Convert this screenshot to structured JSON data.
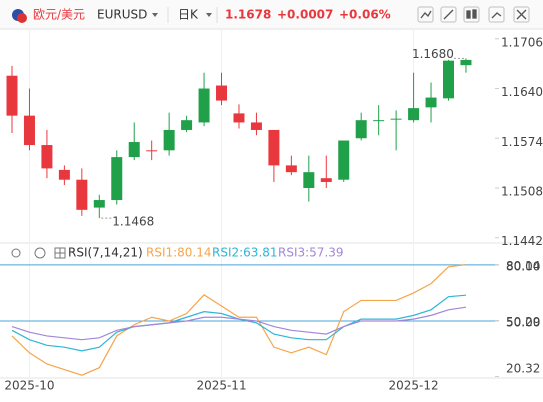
{
  "header": {
    "pair": "欧元/美元",
    "symbol": "EURUSD",
    "period": "日K",
    "price": "1.1678",
    "change": "+0.0007",
    "change_pct": "+0.06%"
  },
  "chart_data": [
    {
      "type": "candlestick",
      "categories": [
        null,
        "2025-10",
        null,
        null,
        null,
        null,
        null,
        null,
        null,
        null,
        null,
        null,
        "2025-11",
        null,
        null,
        null,
        null,
        null,
        null,
        null,
        null,
        null,
        null,
        "2025-12",
        null,
        null,
        null
      ],
      "open": [
        1.1657,
        1.1604,
        1.1565,
        1.1532,
        1.1519,
        1.1482,
        1.1492,
        1.1549,
        1.1558,
        1.1558,
        1.1585,
        1.1595,
        1.1644,
        1.1607,
        1.1595,
        1.1585,
        1.1538,
        1.1508,
        1.1521,
        1.1519,
        1.1574,
        1.1598,
        1.16,
        1.1598,
        1.1615,
        1.1627,
        1.1671
      ],
      "high": [
        1.167,
        1.164,
        1.1585,
        1.1538,
        1.1534,
        1.1499,
        1.1558,
        1.1595,
        1.1571,
        1.1608,
        1.1604,
        1.1661,
        1.1661,
        1.1619,
        1.1608,
        1.1585,
        1.1551,
        1.1551,
        1.1551,
        1.1571,
        1.1608,
        1.1618,
        1.1611,
        1.1661,
        1.1648,
        1.1678,
        1.168
      ],
      "low": [
        1.1581,
        1.1558,
        1.1521,
        1.1512,
        1.1471,
        1.1468,
        1.1486,
        1.1545,
        1.1545,
        1.1551,
        1.1582,
        1.159,
        1.1618,
        1.1587,
        1.1578,
        1.1516,
        1.1525,
        1.149,
        1.1508,
        1.1516,
        1.1571,
        1.1578,
        1.1558,
        1.1595,
        1.1595,
        1.1624,
        1.1661
      ],
      "close": [
        1.1604,
        1.1565,
        1.1534,
        1.1519,
        1.1479,
        1.1492,
        1.1549,
        1.1569,
        1.1557,
        1.1585,
        1.1598,
        1.164,
        1.1624,
        1.1595,
        1.1585,
        1.1538,
        1.1529,
        1.1529,
        1.1516,
        1.1571,
        1.1598,
        1.1598,
        1.16,
        1.1614,
        1.1628,
        1.1677,
        1.1678
      ],
      "up_color": "#21a04a",
      "down_color": "#e8383d",
      "ylim": [
        1.1435,
        1.1719
      ],
      "yticks": [
        1.1706,
        {
          "value": 1.164,
          "label": "1.1640"
        },
        1.1574,
        1.1508,
        1.1442
      ],
      "annotations": [
        {
          "value": 1.168,
          "label": "1.1680"
        },
        {
          "value": 1.1468,
          "label": "1.1468"
        }
      ]
    },
    {
      "type": "line",
      "title": "RSI(7,14,21)",
      "series": [
        {
          "name": "RSI1:80.14",
          "color": "#f5a54a",
          "values": [
            42,
            33,
            27,
            24,
            21,
            25,
            42,
            48,
            52,
            50,
            54,
            64,
            58,
            52,
            52,
            36,
            33,
            36,
            32,
            55,
            61,
            61,
            61,
            65,
            70,
            79,
            80.14
          ]
        },
        {
          "name": "RSI2:63.81",
          "color": "#2fb5d6",
          "values": [
            45,
            40,
            37,
            36,
            34,
            36,
            44,
            47,
            48,
            49,
            52,
            55,
            54,
            51,
            49,
            43,
            41,
            40,
            40,
            47,
            51,
            51,
            51,
            53,
            56,
            63,
            63.81
          ]
        },
        {
          "name": "RSI3:57.39",
          "color": "#a386d8",
          "values": [
            47,
            44,
            42,
            41,
            40,
            41,
            45,
            47,
            48,
            49,
            50,
            52,
            52,
            51,
            50,
            47,
            45,
            44,
            43,
            47,
            50,
            50,
            50,
            51,
            53,
            56,
            57.39
          ]
        }
      ],
      "ylim": [
        19.5,
        83.7
      ],
      "yticks": [
        {
          "value": 80,
          "label": "80.00"
        },
        80.14,
        {
          "value": 50,
          "label": "50.00"
        },
        50.29,
        20.32
      ],
      "guide_lines": [
        80,
        50
      ],
      "guide_color": "#4aa3d9"
    }
  ]
}
